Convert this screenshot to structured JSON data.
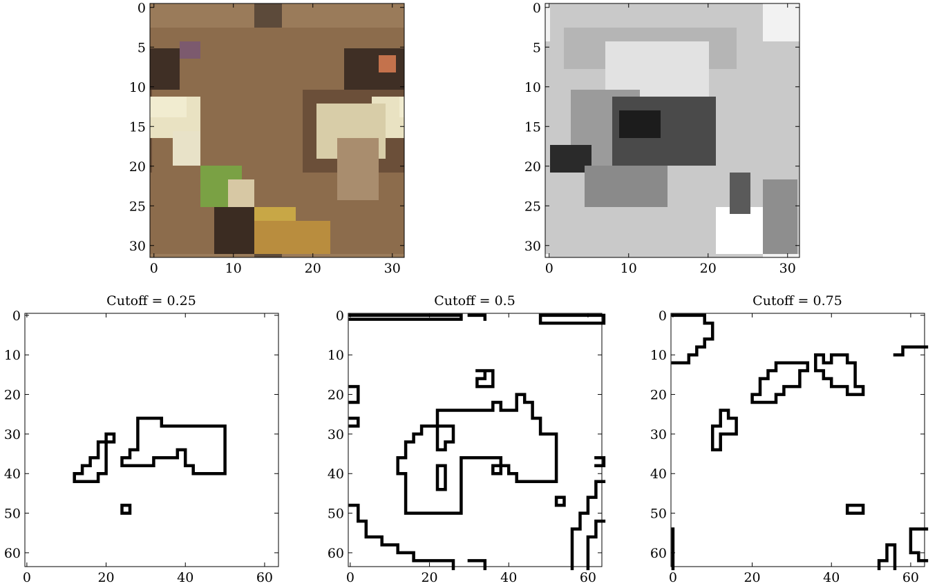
{
  "chart_data": [
    {
      "type": "heatmap",
      "title": "",
      "description_colormap": "rgb",
      "image_size": [
        32,
        32
      ],
      "xlim": [
        -0.5,
        31.5
      ],
      "ylim": [
        31.5,
        -0.5
      ],
      "xticks": [
        0,
        10,
        20,
        30
      ],
      "yticks": [
        0,
        5,
        10,
        15,
        20,
        25,
        30
      ]
    },
    {
      "type": "heatmap",
      "title": "",
      "description_colormap": "gray",
      "image_size": [
        32,
        32
      ],
      "xlim": [
        -0.5,
        31.5
      ],
      "ylim": [
        31.5,
        -0.5
      ],
      "xticks": [
        0,
        10,
        20,
        30
      ],
      "yticks": [
        0,
        5,
        10,
        15,
        20,
        25,
        30
      ]
    },
    {
      "type": "heatmap",
      "title": "Cutoff = 0.25",
      "xlim": [
        -0.5,
        63.5
      ],
      "ylim": [
        63.5,
        -0.5
      ],
      "xticks": [
        0,
        20,
        40,
        60
      ],
      "yticks": [
        0,
        10,
        20,
        30,
        40,
        50,
        60
      ],
      "contours": [
        [
          [
            12,
            42
          ],
          [
            12,
            40
          ],
          [
            14,
            40
          ],
          [
            14,
            38
          ],
          [
            16,
            38
          ],
          [
            16,
            36
          ],
          [
            18,
            36
          ],
          [
            18,
            32
          ],
          [
            20,
            32
          ],
          [
            20,
            30
          ],
          [
            22,
            30
          ],
          [
            22,
            32
          ],
          [
            20,
            32
          ],
          [
            20,
            40
          ],
          [
            18,
            40
          ],
          [
            18,
            42
          ],
          [
            12,
            42
          ]
        ],
        [
          [
            24,
            38
          ],
          [
            24,
            36
          ],
          [
            26,
            36
          ],
          [
            26,
            34
          ],
          [
            28,
            34
          ],
          [
            28,
            26
          ],
          [
            34,
            26
          ],
          [
            34,
            28
          ],
          [
            50,
            28
          ],
          [
            50,
            40
          ],
          [
            42,
            40
          ],
          [
            42,
            38
          ],
          [
            40,
            38
          ],
          [
            40,
            34
          ],
          [
            38,
            34
          ],
          [
            38,
            36
          ],
          [
            32,
            36
          ],
          [
            32,
            38
          ],
          [
            24,
            38
          ]
        ],
        [
          [
            24,
            48
          ],
          [
            26,
            48
          ],
          [
            26,
            50
          ],
          [
            24,
            50
          ],
          [
            24,
            48
          ]
        ]
      ]
    },
    {
      "type": "heatmap",
      "title": "Cutoff = 0.5",
      "xlim": [
        -0.5,
        63.5
      ],
      "ylim": [
        63.5,
        -0.5
      ],
      "xticks": [
        0,
        20,
        40,
        60
      ],
      "yticks": [
        0,
        10,
        20,
        30,
        40,
        50,
        60
      ],
      "contours": [
        [
          [
            0,
            0
          ],
          [
            28,
            0
          ],
          [
            28,
            1
          ],
          [
            0,
            1
          ]
        ],
        [
          [
            30,
            0
          ],
          [
            34,
            0
          ],
          [
            34,
            1
          ]
        ],
        [
          [
            48,
            0
          ],
          [
            64,
            0
          ],
          [
            64,
            2
          ],
          [
            48,
            2
          ],
          [
            48,
            0
          ]
        ],
        [
          [
            32,
            14
          ],
          [
            36,
            14
          ],
          [
            36,
            18
          ],
          [
            32,
            18
          ],
          [
            32,
            16
          ],
          [
            34,
            16
          ],
          [
            34,
            14
          ]
        ],
        [
          [
            0,
            18
          ],
          [
            2,
            18
          ],
          [
            2,
            22
          ],
          [
            0,
            22
          ]
        ],
        [
          [
            0,
            26
          ],
          [
            2,
            26
          ],
          [
            2,
            28
          ],
          [
            0,
            28
          ]
        ],
        [
          [
            12,
            40
          ],
          [
            12,
            36
          ],
          [
            14,
            36
          ],
          [
            14,
            32
          ],
          [
            16,
            32
          ],
          [
            16,
            30
          ],
          [
            18,
            30
          ],
          [
            18,
            28
          ],
          [
            22,
            28
          ],
          [
            22,
            24
          ],
          [
            36,
            24
          ],
          [
            36,
            22
          ],
          [
            38,
            22
          ],
          [
            38,
            24
          ],
          [
            42,
            24
          ],
          [
            42,
            20
          ],
          [
            44,
            20
          ],
          [
            44,
            22
          ],
          [
            46,
            22
          ],
          [
            46,
            26
          ],
          [
            48,
            26
          ],
          [
            48,
            30
          ],
          [
            52,
            30
          ],
          [
            52,
            36
          ],
          [
            52,
            42
          ],
          [
            42,
            42
          ],
          [
            42,
            40
          ],
          [
            40,
            40
          ],
          [
            40,
            38
          ],
          [
            38,
            38
          ],
          [
            38,
            36
          ],
          [
            28,
            36
          ],
          [
            28,
            50
          ],
          [
            14,
            50
          ],
          [
            14,
            40
          ],
          [
            12,
            40
          ]
        ],
        [
          [
            22,
            28
          ],
          [
            26,
            28
          ],
          [
            26,
            32
          ],
          [
            24,
            32
          ],
          [
            24,
            34
          ],
          [
            22,
            34
          ],
          [
            22,
            28
          ]
        ],
        [
          [
            22,
            38
          ],
          [
            24,
            38
          ],
          [
            24,
            44
          ],
          [
            22,
            44
          ],
          [
            22,
            38
          ]
        ],
        [
          [
            36,
            38
          ],
          [
            38,
            38
          ],
          [
            38,
            40
          ],
          [
            36,
            40
          ],
          [
            36,
            38
          ]
        ],
        [
          [
            52,
            46
          ],
          [
            54,
            46
          ],
          [
            54,
            48
          ],
          [
            52,
            48
          ],
          [
            52,
            46
          ]
        ],
        [
          [
            0,
            48
          ],
          [
            2,
            48
          ],
          [
            2,
            52
          ],
          [
            4,
            52
          ],
          [
            4,
            56
          ],
          [
            8,
            56
          ],
          [
            8,
            58
          ],
          [
            12,
            58
          ],
          [
            12,
            60
          ],
          [
            16,
            60
          ],
          [
            16,
            62
          ],
          [
            26,
            62
          ],
          [
            26,
            64
          ]
        ],
        [
          [
            30,
            62
          ],
          [
            34,
            62
          ],
          [
            34,
            64
          ]
        ],
        [
          [
            56,
            64
          ],
          [
            56,
            54
          ],
          [
            58,
            54
          ],
          [
            58,
            50
          ],
          [
            60,
            50
          ],
          [
            60,
            46
          ],
          [
            62,
            46
          ],
          [
            62,
            42
          ],
          [
            64,
            42
          ]
        ],
        [
          [
            60,
            64
          ],
          [
            60,
            56
          ],
          [
            62,
            56
          ],
          [
            62,
            52
          ],
          [
            64,
            52
          ]
        ],
        [
          [
            62,
            36
          ],
          [
            64,
            36
          ],
          [
            64,
            38
          ],
          [
            62,
            38
          ]
        ]
      ]
    },
    {
      "type": "heatmap",
      "title": "Cutoff = 0.75",
      "xlim": [
        -0.5,
        63.5
      ],
      "ylim": [
        63.5,
        -0.5
      ],
      "xticks": [
        0,
        20,
        40,
        60
      ],
      "yticks": [
        0,
        10,
        20,
        30,
        40,
        50,
        60
      ],
      "contours": [
        [
          [
            0,
            0
          ],
          [
            8,
            0
          ],
          [
            8,
            2
          ],
          [
            10,
            2
          ],
          [
            10,
            6
          ],
          [
            8,
            6
          ],
          [
            8,
            8
          ],
          [
            6,
            8
          ],
          [
            6,
            10
          ],
          [
            4,
            10
          ],
          [
            4,
            12
          ],
          [
            0,
            12
          ]
        ],
        [
          [
            20,
            22
          ],
          [
            20,
            20
          ],
          [
            22,
            20
          ],
          [
            22,
            16
          ],
          [
            24,
            16
          ],
          [
            24,
            14
          ],
          [
            26,
            14
          ],
          [
            26,
            12
          ],
          [
            34,
            12
          ],
          [
            34,
            14
          ],
          [
            32,
            14
          ],
          [
            32,
            18
          ],
          [
            28,
            18
          ],
          [
            28,
            20
          ],
          [
            26,
            20
          ],
          [
            26,
            22
          ],
          [
            20,
            22
          ]
        ],
        [
          [
            36,
            10
          ],
          [
            38,
            10
          ],
          [
            38,
            12
          ],
          [
            40,
            12
          ],
          [
            40,
            10
          ],
          [
            44,
            10
          ],
          [
            44,
            12
          ],
          [
            46,
            12
          ],
          [
            46,
            18
          ],
          [
            48,
            18
          ],
          [
            48,
            20
          ],
          [
            44,
            20
          ],
          [
            44,
            18
          ],
          [
            40,
            18
          ],
          [
            40,
            16
          ],
          [
            38,
            16
          ],
          [
            38,
            14
          ],
          [
            36,
            14
          ],
          [
            36,
            10
          ]
        ],
        [
          [
            56,
            10
          ],
          [
            58,
            10
          ],
          [
            58,
            8
          ],
          [
            64,
            8
          ]
        ],
        [
          [
            10,
            34
          ],
          [
            10,
            28
          ],
          [
            12,
            28
          ],
          [
            12,
            24
          ],
          [
            14,
            24
          ],
          [
            14,
            26
          ],
          [
            16,
            26
          ],
          [
            16,
            30
          ],
          [
            12,
            30
          ],
          [
            12,
            34
          ],
          [
            10,
            34
          ]
        ],
        [
          [
            44,
            48
          ],
          [
            48,
            48
          ],
          [
            48,
            50
          ],
          [
            44,
            50
          ],
          [
            44,
            48
          ]
        ],
        [
          [
            52,
            64
          ],
          [
            52,
            62
          ],
          [
            54,
            62
          ],
          [
            54,
            58
          ],
          [
            56,
            58
          ],
          [
            56,
            64
          ]
        ],
        [
          [
            64,
            54
          ],
          [
            60,
            54
          ],
          [
            60,
            60
          ],
          [
            62,
            60
          ],
          [
            62,
            62
          ],
          [
            64,
            62
          ]
        ],
        [
          [
            0,
            54
          ],
          [
            0,
            64
          ]
        ]
      ]
    }
  ]
}
